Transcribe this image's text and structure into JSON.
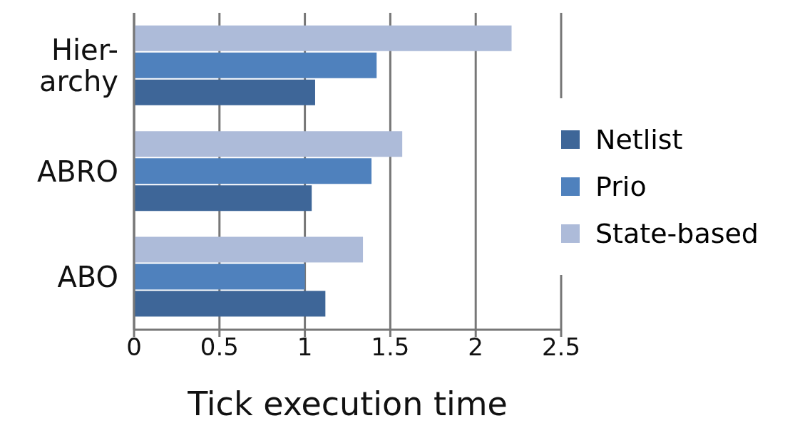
{
  "chart_data": {
    "type": "bar",
    "orientation": "horizontal",
    "xlabel": "Tick execution time",
    "categories": [
      "Hier-\narchy",
      "ABRO",
      "ABO"
    ],
    "series": [
      {
        "name": "State-based",
        "color": "#adbbd9",
        "values": [
          2.21,
          1.57,
          1.34
        ]
      },
      {
        "name": "Prio",
        "color": "#4f81bd",
        "values": [
          1.42,
          1.39,
          1.0
        ]
      },
      {
        "name": "Netlist",
        "color": "#3e6698",
        "values": [
          1.06,
          1.04,
          1.12
        ]
      }
    ],
    "xlim": [
      0,
      2.5
    ],
    "xticks": [
      0,
      0.5,
      1,
      1.5,
      2,
      2.5
    ],
    "grid": "x",
    "legend": "right"
  }
}
